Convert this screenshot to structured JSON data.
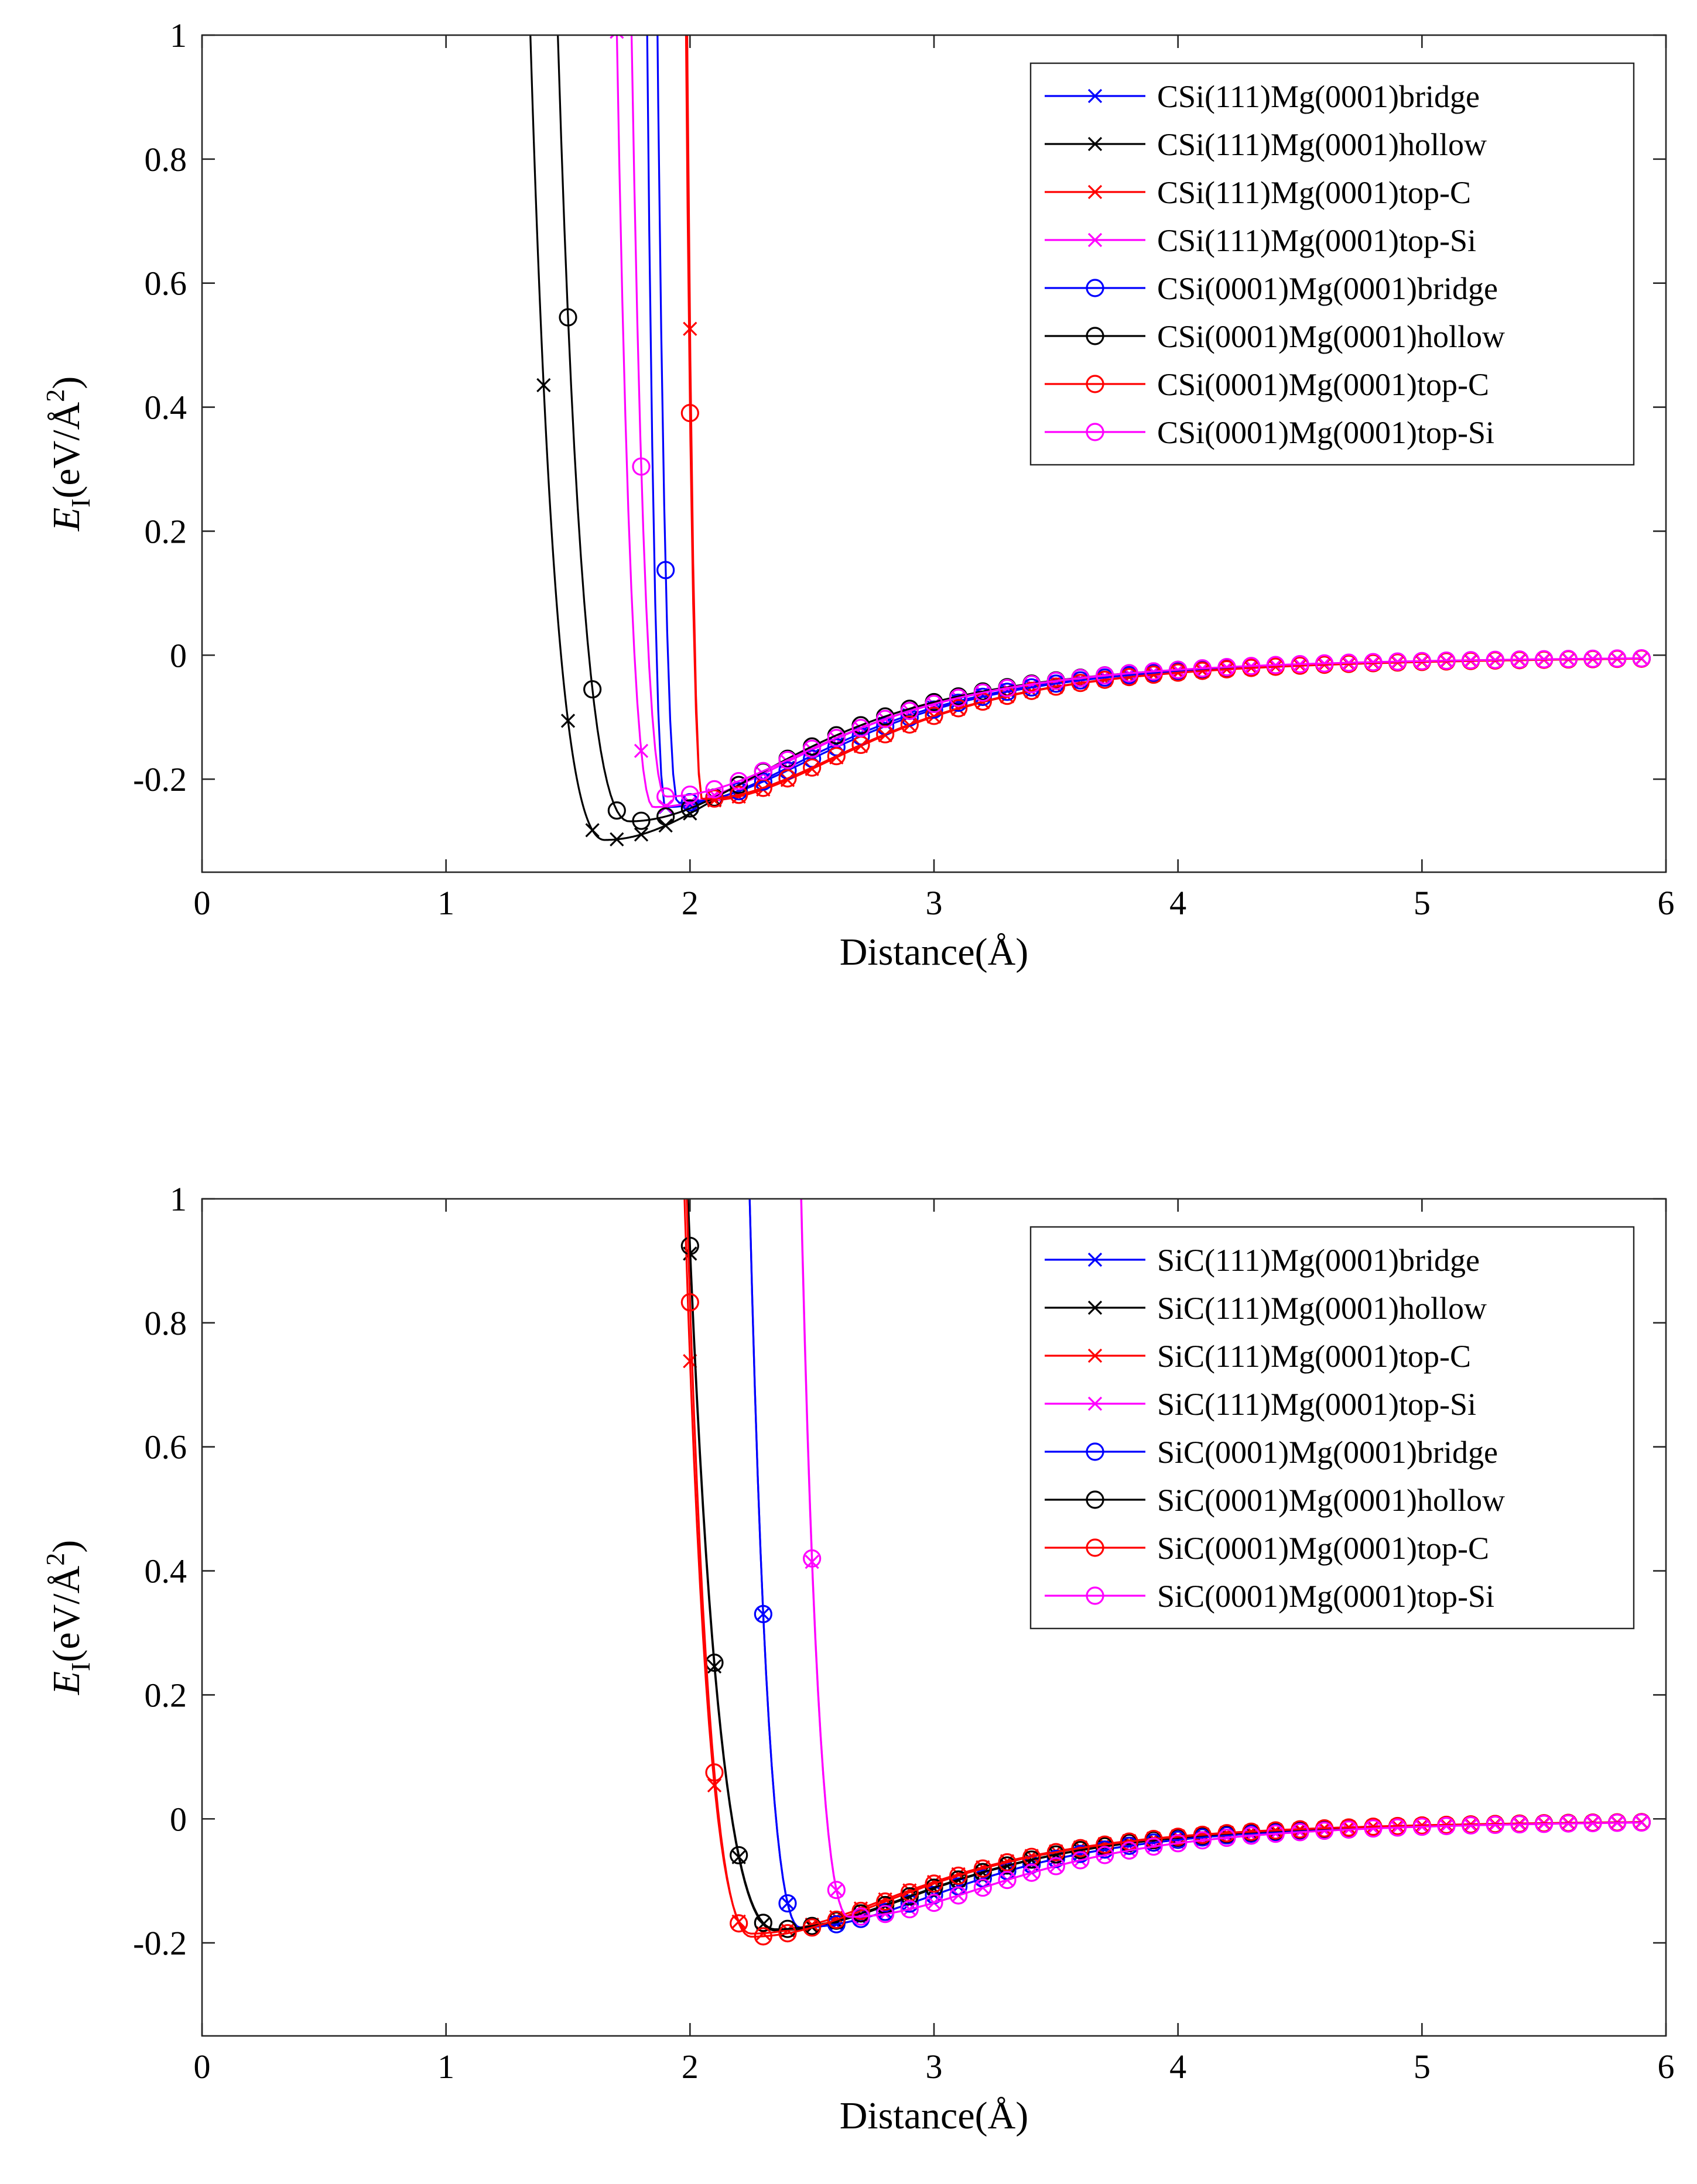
{
  "chart_data": [
    {
      "type": "line",
      "title": "",
      "xlabel": "Distance(Å)",
      "ylabel": {
        "main": "E",
        "sub": "I",
        "unit_prefix": "(eV/Å",
        "unit_power": "2",
        "unit_suffix": ")"
      },
      "xlim": [
        0,
        6
      ],
      "ylim": [
        -0.35,
        1
      ],
      "xticks": [
        0,
        1,
        2,
        3,
        4,
        5,
        6
      ],
      "yticks": [
        -0.2,
        0,
        0.2,
        0.4,
        0.6,
        0.8,
        1
      ],
      "ytick_labels": [
        "-0.2",
        "0",
        "0.2",
        "0.4",
        "0.6",
        "0.8",
        "1"
      ],
      "grid": false,
      "legend_position": "top-right",
      "series": [
        {
          "name": "CSi(111)Mg(0001)bridge",
          "color": "#0000ff",
          "marker": "x",
          "x0": 1.0,
          "x1": 5.9,
          "step": 0.1,
          "mode": "exp",
          "A": 5.87,
          "k": 5.0,
          "xm": 1.9,
          "ym": -0.245
        },
        {
          "name": "CSi(111)Mg(0001)hollow",
          "color": "#000000",
          "marker": "x",
          "x0": 0.5,
          "x1": 2.1,
          "step": 0.1,
          "mode": "exp",
          "A": 0.647,
          "k": 2.9,
          "xm": 1.65,
          "ym": -0.298
        },
        {
          "name": "CSi(111)Mg(0001)top-C",
          "color": "#ff0000",
          "marker": "x",
          "x0": 1.3,
          "x1": 5.9,
          "step": 0.1,
          "mode": "exp",
          "A": 6.22,
          "k": 6.0,
          "xm": 2.05,
          "ym": -0.235
        },
        {
          "name": "CSi(111)Mg(0001)top-Si",
          "color": "#ff00ff",
          "marker": "x",
          "x0": 1.0,
          "x1": 5.9,
          "step": 0.1,
          "mode": "exp",
          "A": 1.85,
          "k": 4.0,
          "xm": 1.85,
          "ym": -0.245
        },
        {
          "name": "CSi(0001)Mg(0001)bridge",
          "color": "#0000ff",
          "marker": "o",
          "x0": 1.0,
          "x1": 5.9,
          "step": 0.1,
          "mode": "exp",
          "A": 5.1,
          "k": 4.8,
          "xm": 1.95,
          "ym": -0.238
        },
        {
          "name": "CSi(0001)Mg(0001)hollow",
          "color": "#000000",
          "marker": "o",
          "x0": 0.5,
          "x1": 5.9,
          "step": 0.1,
          "mode": "exp",
          "A": 0.717,
          "k": 2.9,
          "xm": 1.75,
          "ym": -0.268
        },
        {
          "name": "CSi(0001)Mg(0001)top-C",
          "color": "#ff0000",
          "marker": "o",
          "x0": 1.3,
          "x1": 5.9,
          "step": 0.1,
          "mode": "exp",
          "A": 5.5,
          "k": 5.8,
          "xm": 2.05,
          "ym": -0.232
        },
        {
          "name": "CSi(0001)Mg(0001)top-Si",
          "color": "#ff00ff",
          "marker": "o",
          "x0": 1.0,
          "x1": 5.9,
          "step": 0.1,
          "mode": "exp",
          "A": 2.2,
          "k": 4.0,
          "xm": 1.9,
          "ym": -0.228
        }
      ]
    },
    {
      "type": "line",
      "title": "",
      "xlabel": "Distance(Å)",
      "ylabel": {
        "main": "E",
        "sub": "I",
        "unit_prefix": "(eV/Å",
        "unit_power": "2",
        "unit_suffix": ")"
      },
      "xlim": [
        0,
        6
      ],
      "ylim": [
        -0.35,
        1
      ],
      "xticks": [
        0,
        1,
        2,
        3,
        4,
        5,
        6
      ],
      "yticks": [
        -0.2,
        0,
        0.2,
        0.4,
        0.6,
        0.8,
        1
      ],
      "ytick_labels": [
        "-0.2",
        "0",
        "0.2",
        "0.4",
        "0.6",
        "0.8",
        "1"
      ],
      "grid": false,
      "legend_position": "top-right",
      "series": [
        {
          "name": "SiC(111)Mg(0001)bridge",
          "color": "#0000ff",
          "marker": "x",
          "x0": 1.3,
          "x1": 5.9,
          "step": 0.1,
          "mode": "exp",
          "A": 1.06,
          "k": 3.5,
          "xm": 2.45,
          "ym": -0.175
        },
        {
          "name": "SiC(111)Mg(0001)hollow",
          "color": "#000000",
          "marker": "x",
          "x0": 1.0,
          "x1": 5.9,
          "step": 0.1,
          "mode": "exp",
          "A": 0.63,
          "k": 2.4,
          "xm": 2.35,
          "ym": -0.18
        },
        {
          "name": "SiC(111)Mg(0001)top-C",
          "color": "#ff0000",
          "marker": "x",
          "x0": 1.0,
          "x1": 5.9,
          "step": 0.1,
          "mode": "exp",
          "A": 0.74,
          "k": 3.0,
          "xm": 2.25,
          "ym": -0.185
        },
        {
          "name": "SiC(111)Mg(0001)top-Si",
          "color": "#ff00ff",
          "marker": "x",
          "x0": 1.6,
          "x1": 5.9,
          "step": 0.1,
          "mode": "exp",
          "A": 1.04,
          "k": 3.7,
          "xm": 2.65,
          "ym": -0.158
        },
        {
          "name": "SiC(0001)Mg(0001)bridge",
          "color": "#0000ff",
          "marker": "o",
          "x0": 1.3,
          "x1": 5.9,
          "step": 0.1,
          "mode": "exp",
          "A": 1.06,
          "k": 3.5,
          "xm": 2.45,
          "ym": -0.175
        },
        {
          "name": "SiC(0001)Mg(0001)hollow",
          "color": "#000000",
          "marker": "o",
          "x0": 1.0,
          "x1": 5.9,
          "step": 0.1,
          "mode": "exp",
          "A": 0.636,
          "k": 2.4,
          "xm": 2.35,
          "ym": -0.178
        },
        {
          "name": "SiC(0001)Mg(0001)top-C",
          "color": "#ff0000",
          "marker": "o",
          "x0": 1.0,
          "x1": 5.9,
          "step": 0.1,
          "mode": "exp",
          "A": 0.82,
          "k": 3.0,
          "xm": 2.25,
          "ym": -0.19
        },
        {
          "name": "SiC(0001)Mg(0001)top-Si",
          "color": "#ff00ff",
          "marker": "o",
          "x0": 1.6,
          "x1": 5.9,
          "step": 0.1,
          "mode": "exp",
          "A": 1.05,
          "k": 3.7,
          "xm": 2.65,
          "ym": -0.158
        }
      ]
    }
  ]
}
